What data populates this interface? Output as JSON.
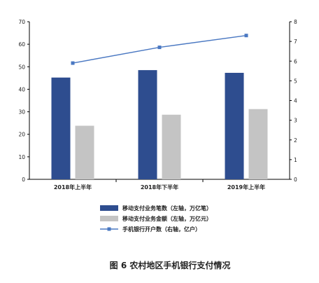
{
  "chart_data": {
    "type": "bar",
    "categories": [
      "2018年上半年",
      "2018年下半年",
      "2019年上半年"
    ],
    "series": [
      {
        "name": "移动支付业务笔数（左轴，万亿笔）",
        "type": "bar",
        "axis": "left",
        "color": "#2e4d8f",
        "values": [
          45.2,
          48.5,
          47.3
        ]
      },
      {
        "name": "移动支付业务金额（左轴，万亿元）",
        "type": "bar",
        "axis": "left",
        "color": "#c4c4c4",
        "values": [
          23.8,
          28.7,
          31.2
        ]
      },
      {
        "name": "手机银行开户数（右轴，亿户）",
        "type": "line",
        "axis": "right",
        "color": "#4a78c2",
        "values": [
          5.9,
          6.7,
          7.3
        ]
      }
    ],
    "ylim_left": [
      0,
      70
    ],
    "yticks_left": [
      "0",
      "10",
      "20",
      "30",
      "40",
      "50",
      "60",
      "70"
    ],
    "ylim_right": [
      0,
      8
    ],
    "yticks_right": [
      "0",
      "1",
      "2",
      "3",
      "4",
      "5",
      "6",
      "7",
      "8"
    ],
    "grid": false,
    "legend_position": "bottom-center",
    "title": "图 6  农村地区手机银行支付情况"
  }
}
